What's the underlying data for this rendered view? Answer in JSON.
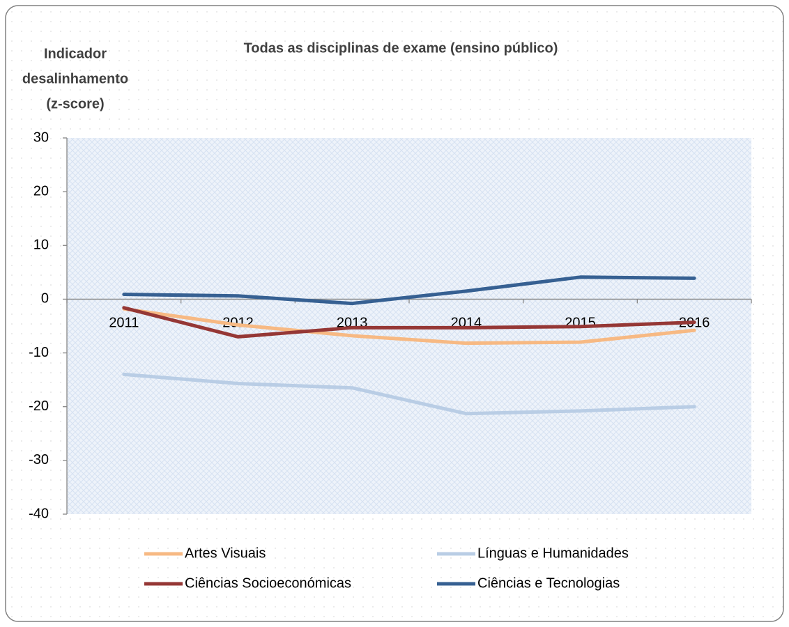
{
  "chart_data": {
    "type": "line",
    "title": "Todas as disciplinas de exame (ensino público)",
    "y_label": [
      "Indicador",
      "desalinhamento",
      "(z-score)"
    ],
    "categories": [
      "2011",
      "2012",
      "2013",
      "2014",
      "2015",
      "2016"
    ],
    "ylim": [
      -40,
      30
    ],
    "yticks": [
      -40,
      -30,
      -20,
      -10,
      0,
      10,
      20,
      30
    ],
    "series": [
      {
        "name": "Artes Visuais",
        "color": "#f7b983",
        "values": [
          -1.8,
          -4.8,
          -6.8,
          -8.2,
          -8.0,
          -5.8
        ]
      },
      {
        "name": "Línguas e Humanidades",
        "color": "#b9cde5",
        "values": [
          -14.0,
          -15.7,
          -16.5,
          -21.3,
          -20.8,
          -20.0
        ]
      },
      {
        "name": "Ciências Socioeconómicas",
        "color": "#953735",
        "values": [
          -1.6,
          -7.0,
          -5.3,
          -5.3,
          -5.1,
          -4.3
        ]
      },
      {
        "name": "Ciências e Tecnologias",
        "color": "#366092",
        "values": [
          0.9,
          0.6,
          -0.8,
          1.5,
          4.1,
          3.9
        ]
      }
    ]
  }
}
